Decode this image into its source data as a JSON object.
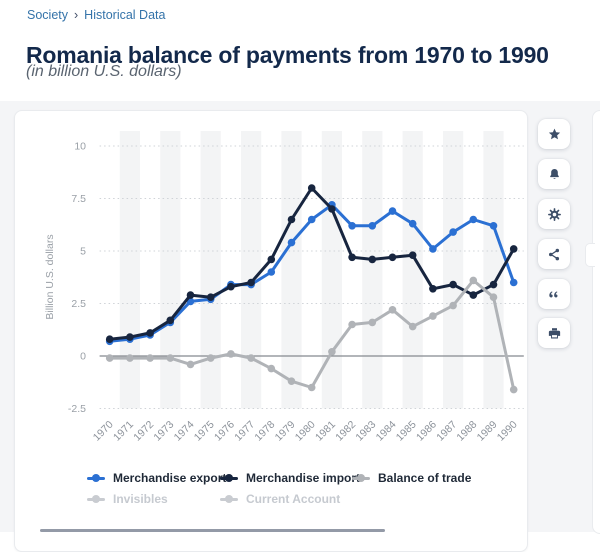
{
  "breadcrumb": {
    "section": "Society",
    "separator": "›",
    "page": "Historical Data"
  },
  "header": {
    "title": "Romania balance of payments from 1970 to 1990",
    "subtitle": "(in billion U.S. dollars)"
  },
  "toolbar": {
    "icons": [
      "star",
      "bell",
      "gear",
      "share",
      "quote",
      "printer"
    ]
  },
  "chart_data": {
    "type": "line",
    "title": "Romania balance of payments from 1970 to 1990",
    "xlabel": "",
    "ylabel": "Billion U.S. dollars",
    "ylim": [
      -2.5,
      10
    ],
    "yticks": [
      10,
      7.5,
      5,
      2.5,
      0,
      -2.5
    ],
    "grid": true,
    "legend_position": "bottom",
    "categories": [
      "1970",
      "1971",
      "1972",
      "1973",
      "1974",
      "1975",
      "1976",
      "1977",
      "1978",
      "1979",
      "1980",
      "1981",
      "1982",
      "1983",
      "1984",
      "1985",
      "1986",
      "1987",
      "1988",
      "1989",
      "1990"
    ],
    "series": [
      {
        "name": "Merchandise export",
        "color": "#2b70d3",
        "values": [
          0.7,
          0.8,
          1.0,
          1.6,
          2.6,
          2.7,
          3.4,
          3.4,
          4.0,
          5.4,
          6.5,
          7.2,
          6.2,
          6.2,
          6.9,
          6.3,
          5.1,
          5.9,
          6.5,
          6.2,
          3.5
        ]
      },
      {
        "name": "Merchandise import",
        "color": "#17253f",
        "values": [
          0.8,
          0.9,
          1.1,
          1.7,
          2.9,
          2.8,
          3.3,
          3.5,
          4.6,
          6.5,
          8.0,
          7.0,
          4.7,
          4.6,
          4.7,
          4.8,
          3.2,
          3.4,
          2.9,
          3.4,
          5.1
        ]
      },
      {
        "name": "Balance of trade",
        "color": "#b0b3b7",
        "values": [
          -0.1,
          -0.1,
          -0.1,
          -0.1,
          -0.4,
          -0.1,
          0.1,
          -0.1,
          -0.6,
          -1.2,
          -1.5,
          0.2,
          1.5,
          1.6,
          2.2,
          1.4,
          1.9,
          2.4,
          3.6,
          2.8,
          -1.6
        ]
      },
      {
        "name": "Invisibles",
        "color": "#c9ccd1",
        "values": [],
        "disabled": true
      },
      {
        "name": "Current Account",
        "color": "#c9ccd1",
        "values": [],
        "disabled": true
      }
    ]
  }
}
